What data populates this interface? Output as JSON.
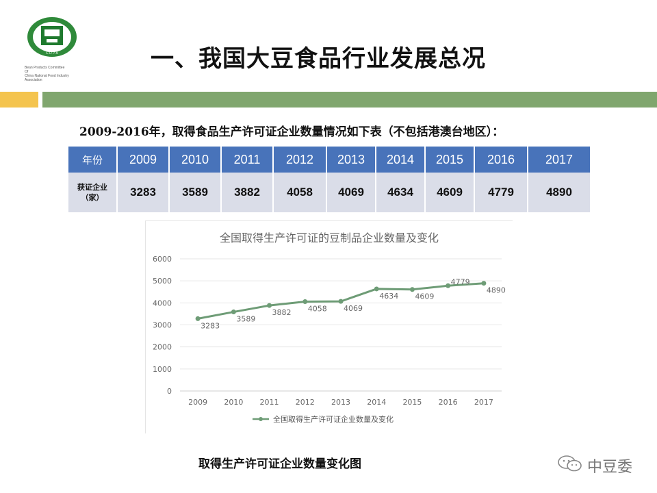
{
  "logo": {
    "caption_lines": [
      "Bean Products Committee",
      "Of",
      "China National Food Industry Association"
    ],
    "badge_text": "C D P A"
  },
  "title": "一、我国大豆食品行业发展总况",
  "subtitle": "2009-2016年，取得食品生产许可证企业数量情况如下表（不包括港澳台地区）：",
  "table": {
    "header_label": "年份",
    "row_label_line1": "获证企业",
    "row_label_line2": "（家）",
    "years": [
      "2009",
      "2010",
      "2011",
      "2012",
      "2013",
      "2014",
      "2015",
      "2016",
      "2017"
    ],
    "values": [
      "3283",
      "3589",
      "3882",
      "4058",
      "4069",
      "4634",
      "4609",
      "4779",
      "4890"
    ]
  },
  "chart_data": {
    "type": "line",
    "title": "全国取得生产许可证的豆制品企业数量及变化",
    "categories": [
      "2009",
      "2010",
      "2011",
      "2012",
      "2013",
      "2014",
      "2015",
      "2016",
      "2017"
    ],
    "series": [
      {
        "name": "全国取得生产许可证企业数量及变化",
        "values": [
          3283,
          3589,
          3882,
          4058,
          4069,
          4634,
          4609,
          4779,
          4890
        ]
      }
    ],
    "ylim": [
      0,
      6000
    ],
    "yticks": [
      0,
      1000,
      2000,
      3000,
      4000,
      5000,
      6000
    ],
    "grid": true,
    "legend_position": "bottom",
    "color": "#6e9c76"
  },
  "caption": "取得生产许可证企业数量变化图",
  "watermark": "中豆委"
}
